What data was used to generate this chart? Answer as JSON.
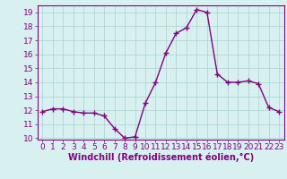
{
  "x": [
    0,
    1,
    2,
    3,
    4,
    5,
    6,
    7,
    8,
    9,
    10,
    11,
    12,
    13,
    14,
    15,
    16,
    17,
    18,
    19,
    20,
    21,
    22,
    23
  ],
  "y": [
    11.9,
    12.1,
    12.1,
    11.9,
    11.8,
    11.8,
    11.6,
    10.7,
    10.0,
    10.1,
    12.5,
    14.0,
    16.1,
    17.5,
    17.9,
    19.2,
    19.0,
    14.6,
    14.0,
    14.0,
    14.1,
    13.9,
    12.2,
    11.9
  ],
  "line_color": "#800080",
  "marker": "+",
  "marker_size": 4,
  "linewidth": 1.0,
  "xlabel": "Windchill (Refroidissement éolien,°C)",
  "xlabel_fontsize": 7,
  "xlim": [
    -0.5,
    23.5
  ],
  "ylim": [
    9.9,
    19.5
  ],
  "yticks": [
    10,
    11,
    12,
    13,
    14,
    15,
    16,
    17,
    18,
    19
  ],
  "xticks": [
    0,
    1,
    2,
    3,
    4,
    5,
    6,
    7,
    8,
    9,
    10,
    11,
    12,
    13,
    14,
    15,
    16,
    17,
    18,
    19,
    20,
    21,
    22,
    23
  ],
  "tick_fontsize": 6.5,
  "grid_color": "#b0d8d8",
  "bg_color": "#d8f0f0",
  "spine_color": "#800080"
}
